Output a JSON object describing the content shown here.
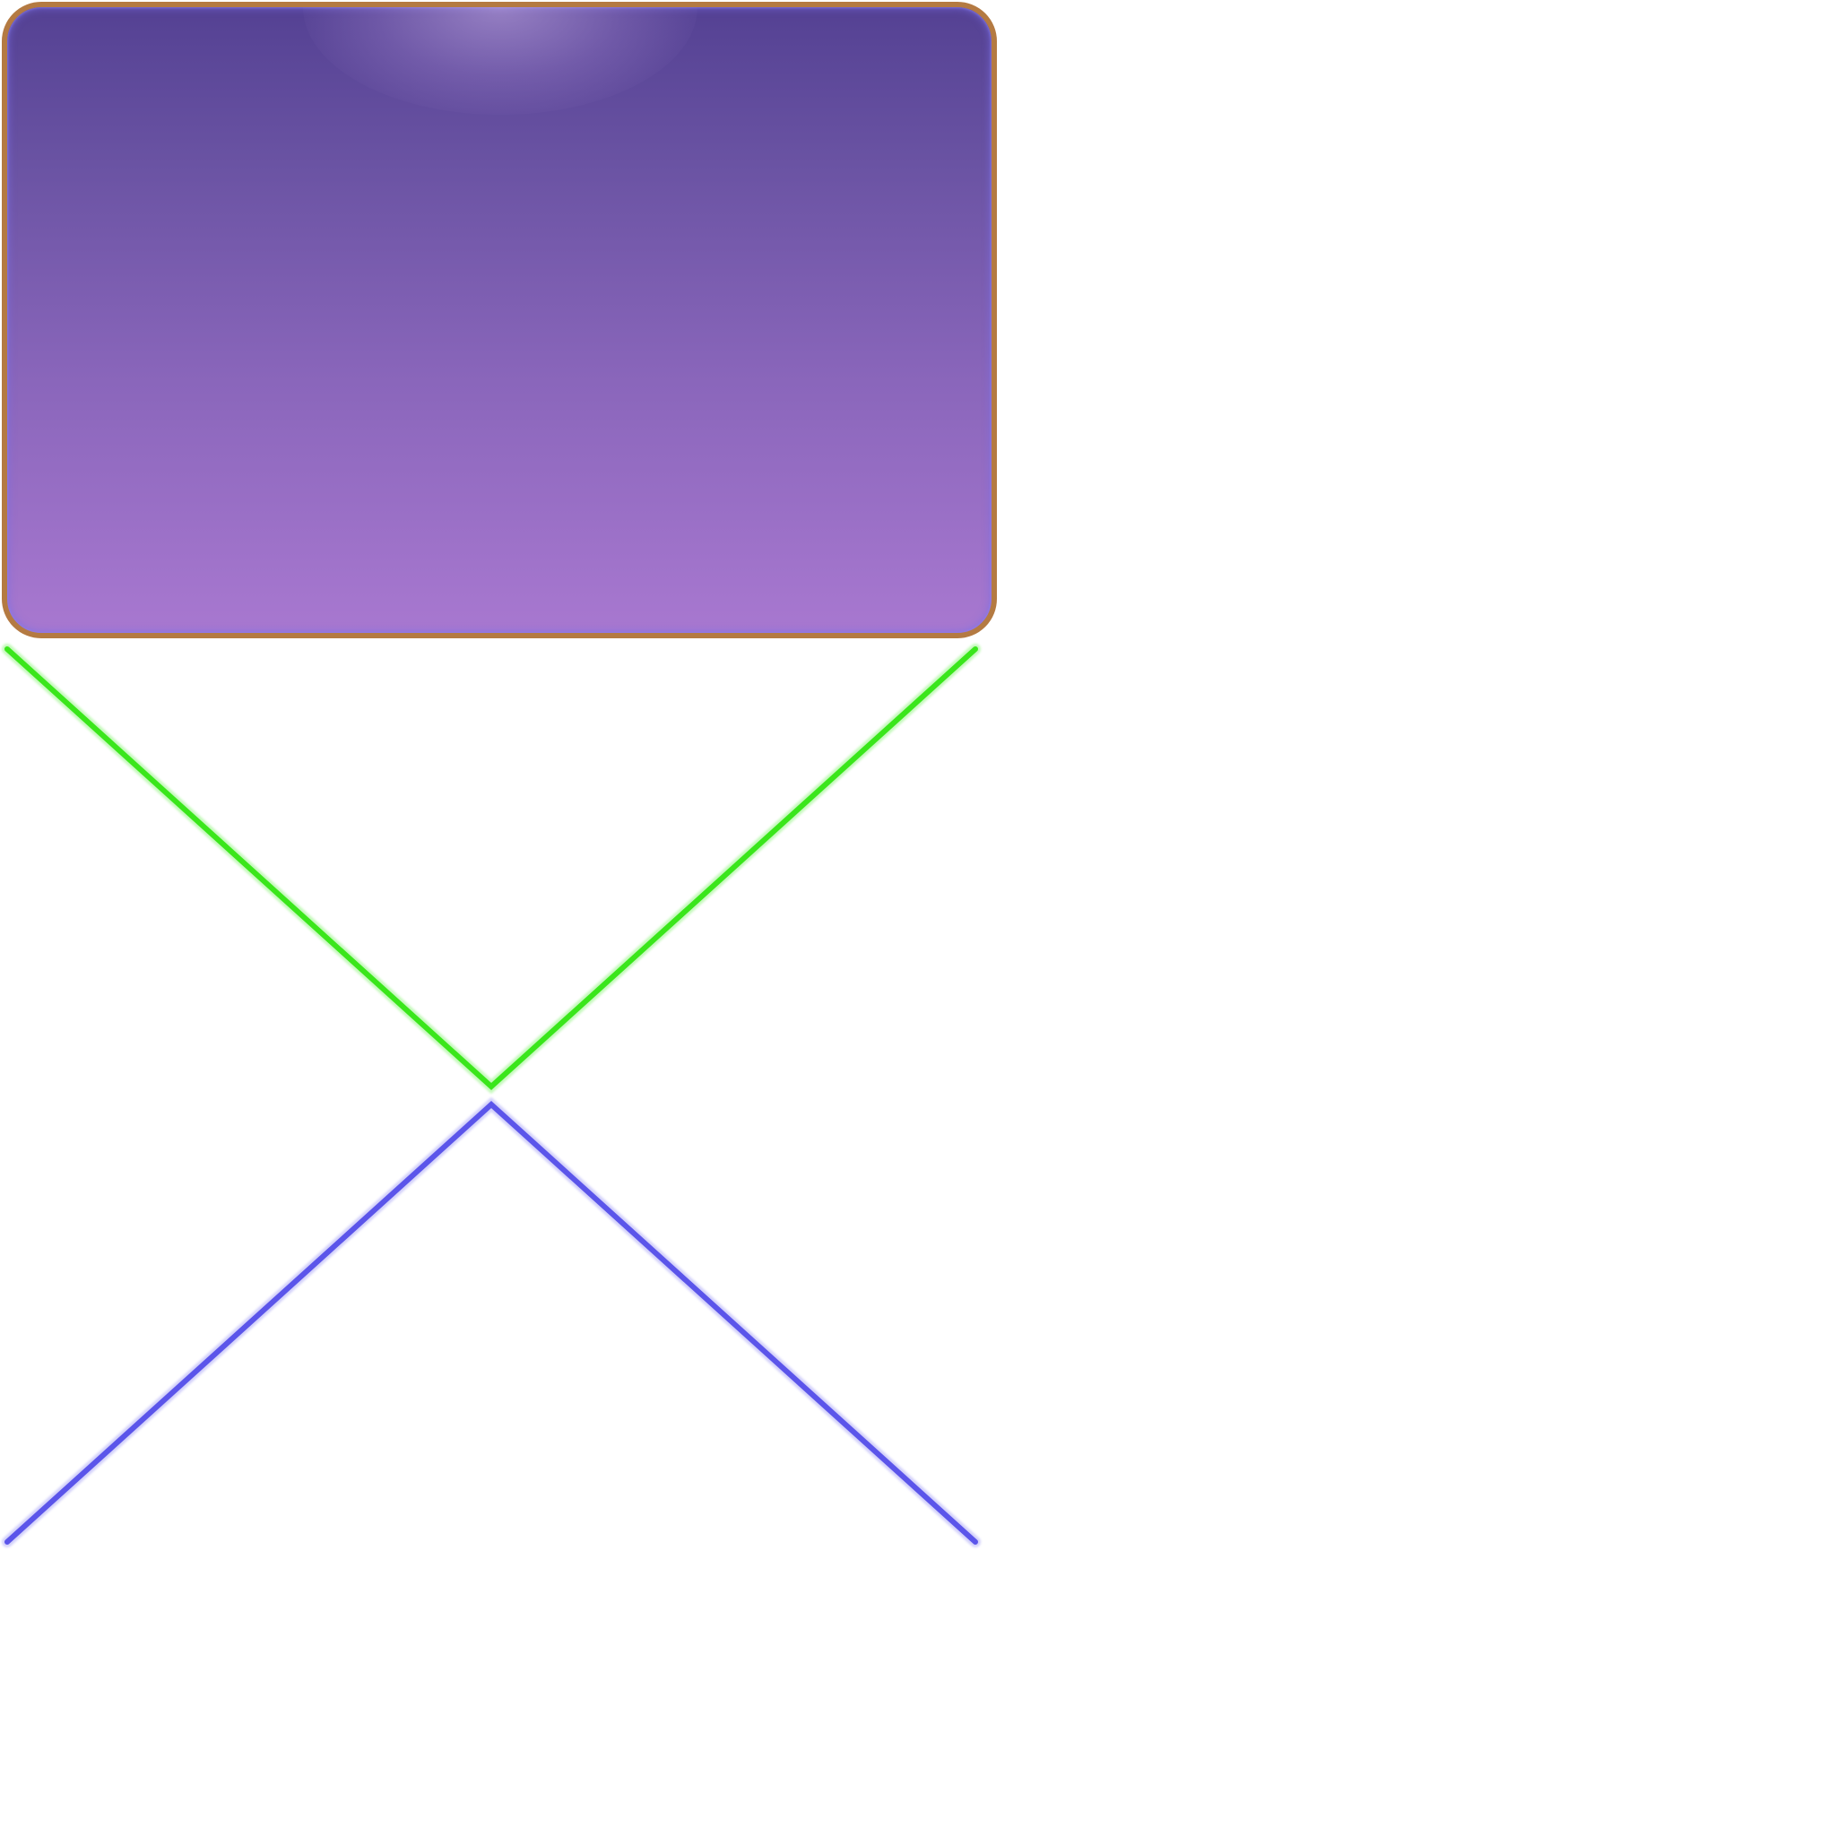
{
  "colors": {
    "panel_gradient_top": "#544193",
    "panel_gradient_bottom": "#a878d0",
    "panel_border": "#b47a42",
    "panel_border_highlight": "#e7b06c",
    "down_chevron": "#3ae61b",
    "up_chevron": "#5b55ea"
  },
  "icons": {
    "down": "chevron-down-icon",
    "up": "chevron-up-icon"
  }
}
